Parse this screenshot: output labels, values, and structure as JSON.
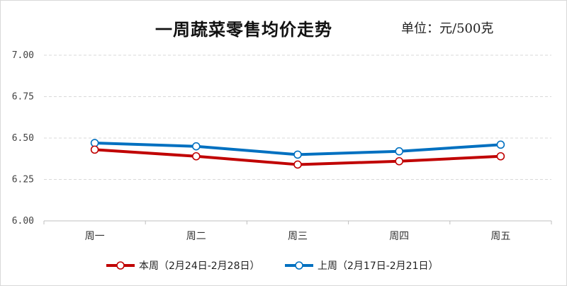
{
  "chart_data": {
    "type": "line",
    "title": "一周蔬菜零售均价走势",
    "unit_label": "单位：元/500克",
    "categories": [
      "周一",
      "周二",
      "周三",
      "周四",
      "周五"
    ],
    "ylim": [
      6.0,
      7.0
    ],
    "yticks": [
      "6.00",
      "6.25",
      "6.50",
      "6.75",
      "7.00"
    ],
    "grid": true,
    "legend_position": "bottom",
    "series": [
      {
        "name": "本周（2月24日-2月28日）",
        "color": "#c00000",
        "values": [
          6.43,
          6.39,
          6.34,
          6.36,
          6.39
        ]
      },
      {
        "name": "上周（2月17日-2月21日）",
        "color": "#0070c0",
        "values": [
          6.47,
          6.45,
          6.4,
          6.42,
          6.46
        ]
      }
    ]
  }
}
